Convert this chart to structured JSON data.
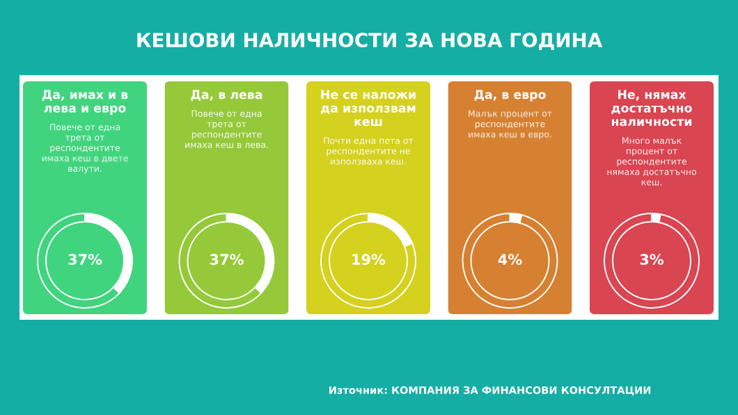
{
  "chart_data": [
    {
      "type": "other",
      "title": "КЕШОВИ НАЛИЧНОСТИ ЗА НОВА ГОДИНА"
    },
    {
      "type": "donut",
      "title": "Да, имах и в лева и евро",
      "subtitle": "Повече от една трета от респондентите имаха кеш в двете валути.",
      "categories": [
        null,
        null
      ],
      "values": [
        37,
        63
      ],
      "colors": [
        "#ffffff",
        "#41d47f"
      ],
      "value_labels": [
        "37%",
        null
      ]
    },
    {
      "type": "donut",
      "title": "Да, в лева",
      "subtitle": "Повече от една трета от респондентите имаха кеш в лева.",
      "categories": [
        null,
        null
      ],
      "values": [
        37,
        63
      ],
      "colors": [
        "#ffffff",
        "#95c93a"
      ],
      "value_labels": [
        "37%",
        null
      ]
    },
    {
      "type": "donut",
      "title": "Не се наложи да използвам кеш",
      "subtitle": "Почти една пета от респондентите не използваха кеш.",
      "categories": [
        null,
        null
      ],
      "values": [
        19,
        81
      ],
      "colors": [
        "#ffffff",
        "#d5d11f"
      ],
      "value_labels": [
        "19%",
        null
      ]
    },
    {
      "type": "donut",
      "title": "Да, в евро",
      "subtitle": "Малък процент от респондентите имаха кеш в евро.",
      "categories": [
        null,
        null
      ],
      "values": [
        4,
        96
      ],
      "colors": [
        "#ffffff",
        "#d68131"
      ],
      "value_labels": [
        "4%",
        null
      ]
    },
    {
      "type": "donut",
      "title": "Не, нямах достатъчно наличности",
      "subtitle": "Много малък процент от респондентите нямаха достатъчно кеш.",
      "categories": [
        null,
        null
      ],
      "values": [
        3,
        97
      ],
      "colors": [
        "#ffffff",
        "#d94551"
      ],
      "value_labels": [
        "3%",
        null
      ]
    },
    {
      "type": "other",
      "annotations": [
        "Източник: КОМПАНИЯ ЗА ФИНАНСОВИ КОНСУЛТАЦИИ"
      ]
    }
  ]
}
